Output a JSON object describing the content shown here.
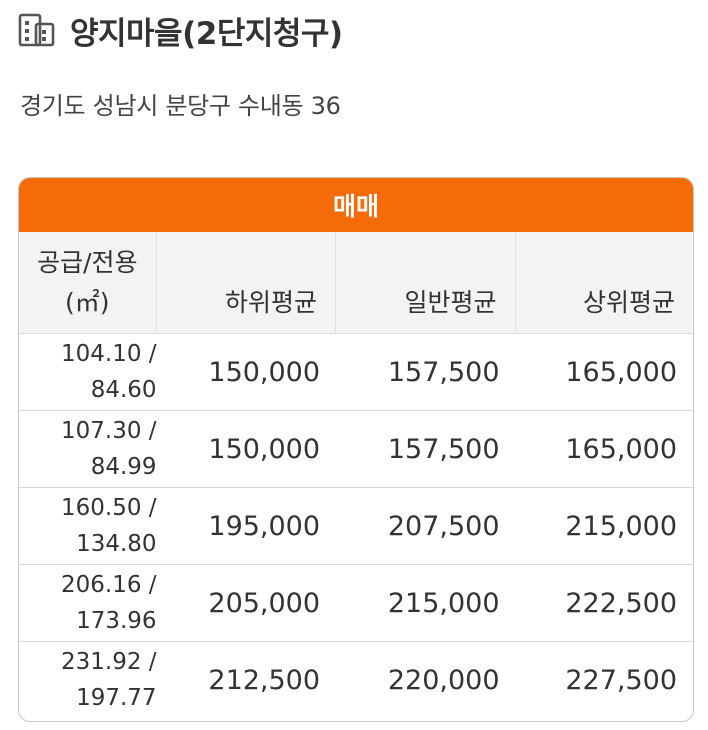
{
  "header": {
    "icon": "building-icon",
    "title": "양지마을(2단지청구)",
    "address": "경기도 성남시 분당구 수내동 36"
  },
  "table": {
    "trade_type": "매매",
    "accent_color": "#f46b08",
    "columns": {
      "area_line1": "공급/전용",
      "area_unit": "(㎡)",
      "low": "하위평균",
      "mid": "일반평균",
      "high": "상위평균"
    },
    "rows": [
      {
        "supply": "104.10 /",
        "exclusive": "84.60",
        "low": "150,000",
        "mid": "157,500",
        "high": "165,000"
      },
      {
        "supply": "107.30 /",
        "exclusive": "84.99",
        "low": "150,000",
        "mid": "157,500",
        "high": "165,000"
      },
      {
        "supply": "160.50 /",
        "exclusive": "134.80",
        "low": "195,000",
        "mid": "207,500",
        "high": "215,000"
      },
      {
        "supply": "206.16 /",
        "exclusive": "173.96",
        "low": "205,000",
        "mid": "215,000",
        "high": "222,500"
      },
      {
        "supply": "231.92 /",
        "exclusive": "197.77",
        "low": "212,500",
        "mid": "220,000",
        "high": "227,500"
      }
    ]
  }
}
